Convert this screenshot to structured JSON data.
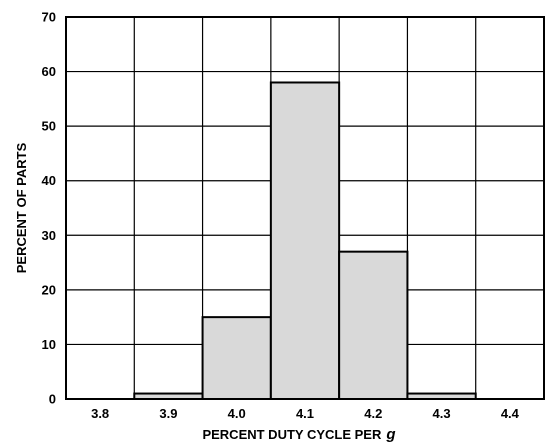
{
  "chart_data": {
    "type": "bar",
    "title": "",
    "xlabel": "PERCENT DUTY CYCLE PER",
    "xlabel_unit": "g",
    "ylabel": "PERCENT OF PARTS",
    "ylim": [
      0,
      70
    ],
    "yticks": [
      "0",
      "10",
      "20",
      "30",
      "40",
      "50",
      "60",
      "70"
    ],
    "categories": [
      "3.8",
      "3.9",
      "4.0",
      "4.1",
      "4.2",
      "4.3",
      "4.4"
    ],
    "values": [
      0,
      1,
      15,
      58,
      27,
      1,
      0
    ],
    "grid": true,
    "bar_color": "#d9d9d9",
    "bar_edge_color": "#000000",
    "grid_color": "#000000"
  }
}
